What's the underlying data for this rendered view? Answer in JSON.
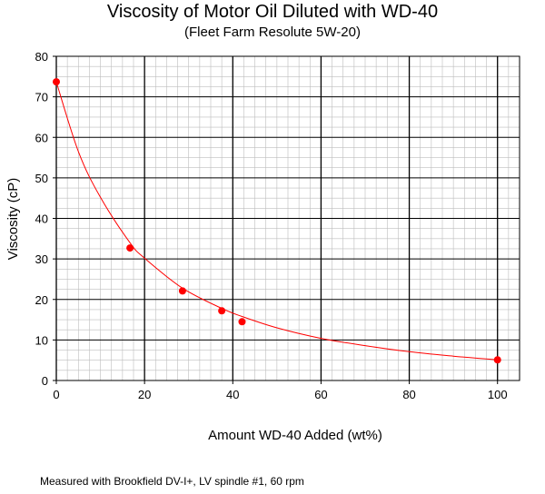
{
  "chart_data": {
    "type": "scatter",
    "title": "Viscosity of Motor Oil Diluted with WD-40",
    "subtitle": "(Fleet Farm Resolute 5W-20)",
    "xlabel": "Amount WD-40 Added (wt%)",
    "ylabel": "Viscosity (cP)",
    "xlim": [
      0,
      105
    ],
    "ylim": [
      0,
      80
    ],
    "x_ticks": [
      0,
      20,
      40,
      60,
      80,
      100
    ],
    "y_ticks": [
      0,
      10,
      20,
      30,
      40,
      50,
      60,
      70,
      80
    ],
    "grid": true,
    "legend": "none",
    "series": [
      {
        "marker_color": "#ff0000",
        "points": [
          {
            "x": 0,
            "y": 73.7
          },
          {
            "x": 16.7,
            "y": 32.7
          },
          {
            "x": 28.6,
            "y": 22.1
          },
          {
            "x": 37.5,
            "y": 17.2
          },
          {
            "x": 42.1,
            "y": 14.5
          },
          {
            "x": 100,
            "y": 5.1
          }
        ]
      }
    ],
    "fit_curve": {
      "color": "#ff0000",
      "points": [
        {
          "x": 0,
          "y": 73.7
        },
        {
          "x": 5,
          "y": 56.5
        },
        {
          "x": 10,
          "y": 45.2
        },
        {
          "x": 16.7,
          "y": 34.0
        },
        {
          "x": 20,
          "y": 30.2
        },
        {
          "x": 28.6,
          "y": 22.8
        },
        {
          "x": 37.5,
          "y": 17.8
        },
        {
          "x": 42.1,
          "y": 15.8
        },
        {
          "x": 50,
          "y": 13.0
        },
        {
          "x": 60,
          "y": 10.4
        },
        {
          "x": 70,
          "y": 8.6
        },
        {
          "x": 80,
          "y": 7.1
        },
        {
          "x": 90,
          "y": 6.0
        },
        {
          "x": 100,
          "y": 5.1
        }
      ]
    }
  },
  "footnote": "Measured with  Brookfield DV-I+, LV spindle #1, 60 rpm"
}
